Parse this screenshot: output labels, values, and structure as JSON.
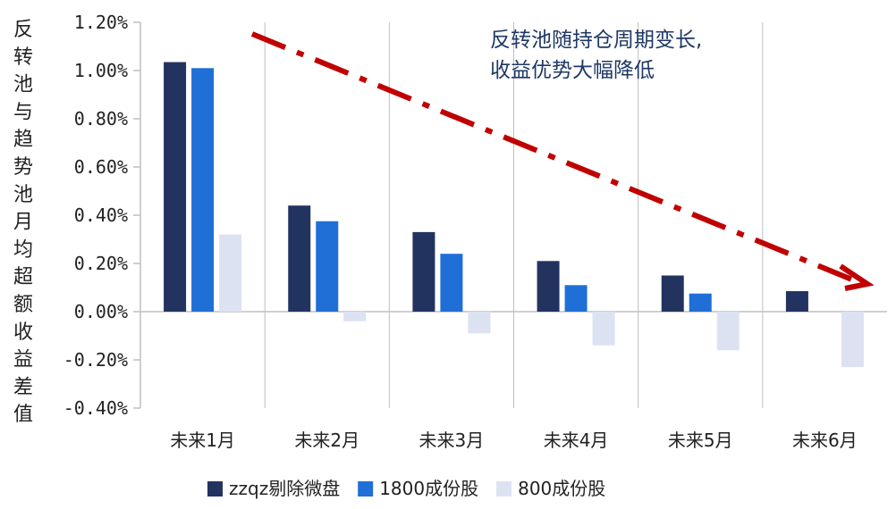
{
  "chart_data": {
    "type": "bar",
    "ylabel": "反转池与趋势池月均超额收益差值",
    "categories": [
      "未来1月",
      "未来2月",
      "未来3月",
      "未来4月",
      "未来5月",
      "未来6月"
    ],
    "series": [
      {
        "name": "zzqz剔除微盘",
        "values": [
          1.035,
          0.44,
          0.33,
          0.21,
          0.15,
          0.085
        ]
      },
      {
        "name": "1800成份股",
        "values": [
          1.01,
          0.375,
          0.24,
          0.11,
          0.075,
          0.0
        ]
      },
      {
        "name": "800成份股",
        "values": [
          0.32,
          -0.04,
          -0.09,
          -0.14,
          -0.16,
          -0.23
        ]
      }
    ],
    "ylim": [
      -0.4,
      1.2
    ],
    "yticks": [
      -0.4,
      -0.2,
      0.0,
      0.2,
      0.4,
      0.6,
      0.8,
      1.0,
      1.2
    ],
    "ytick_labels": [
      "-0.40%",
      "-0.20%",
      "0.00%",
      "0.20%",
      "0.40%",
      "0.60%",
      "0.80%",
      "1.00%",
      "1.20%"
    ],
    "grid": "vertical",
    "legend": "bottom",
    "annotation": {
      "lines": [
        "反转池随持仓周期变长,",
        "收益优势大幅降低"
      ]
    },
    "colors": {
      "series": [
        "#233360",
        "#1f6fd6",
        "#dde2f3"
      ],
      "arrow": "#c00000",
      "annotation": "#1f3864",
      "axis": "#bfbfbf"
    }
  }
}
